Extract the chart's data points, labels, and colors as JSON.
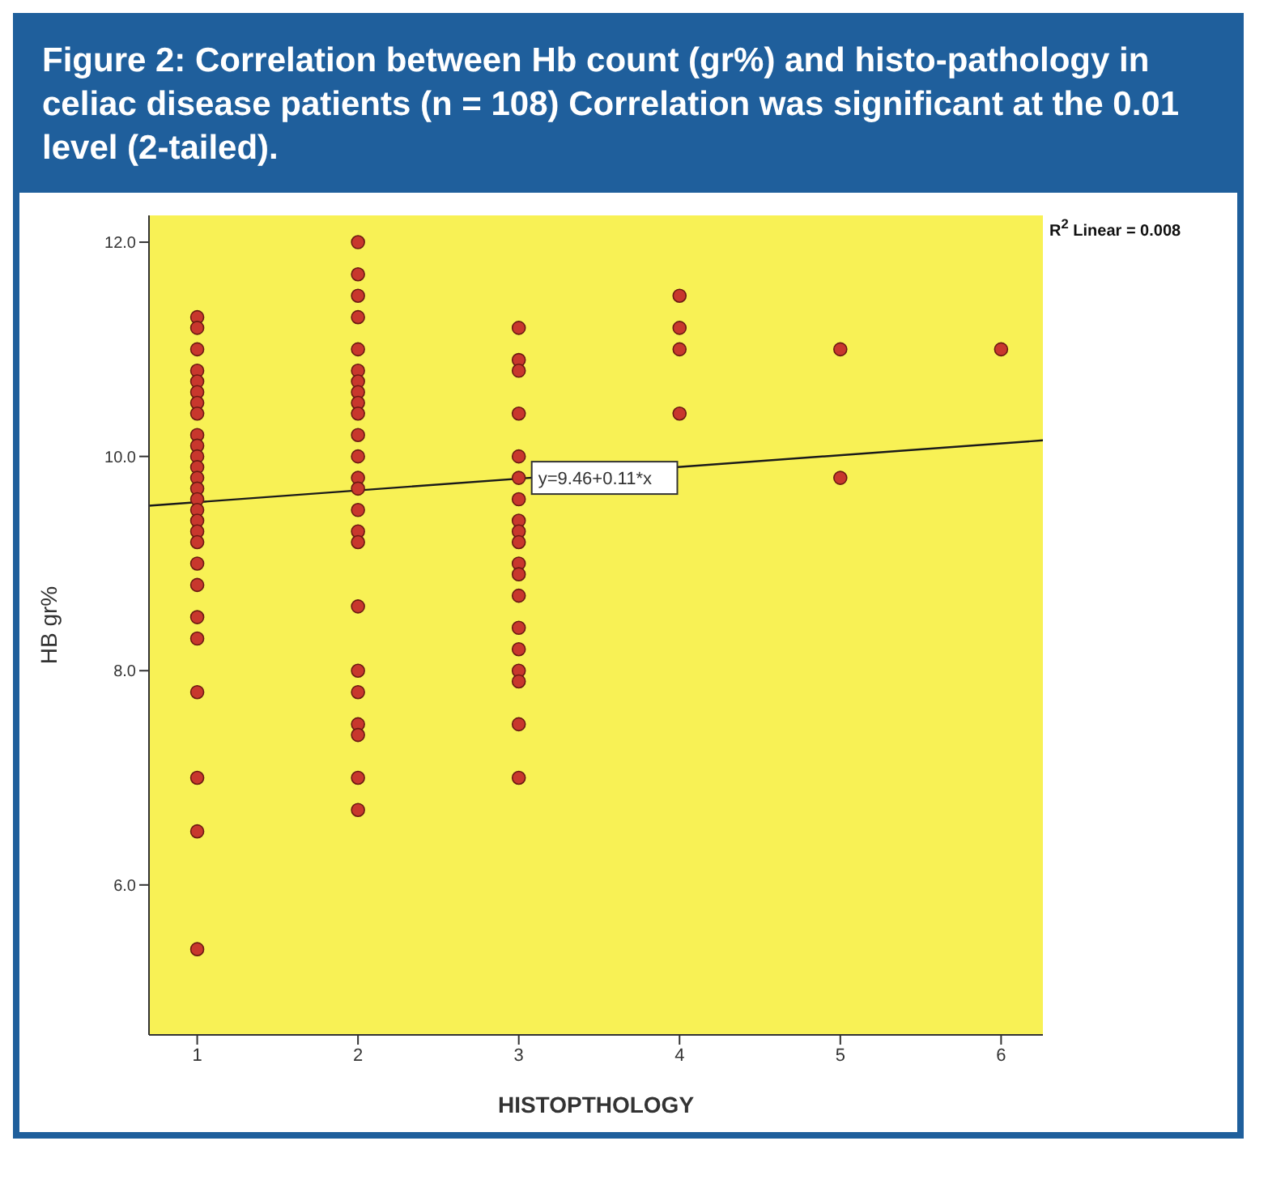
{
  "chart_data": {
    "type": "scatter",
    "title": "Figure 2: Correlation between Hb count (gr%) and histo-pathology in celiac disease patients (n = 108) Correlation was significant at the 0.01 level (2-tailed).",
    "xlabel": "HISTOPTHOLOGY",
    "ylabel": "HB gr%",
    "xlim": [
      0.7,
      6.26
    ],
    "xticks": [
      1,
      2,
      3,
      4,
      5,
      6
    ],
    "ylim": [
      4.6,
      12.25
    ],
    "yticks": [
      {
        "value": 6,
        "label": "6.0"
      },
      {
        "value": 8,
        "label": "8.0"
      },
      {
        "value": 10,
        "label": "10.0"
      },
      {
        "value": 12,
        "label": "12.0"
      }
    ],
    "marker": "circle",
    "grid": false,
    "legend": false,
    "series": [
      {
        "color": "#c8372d",
        "x": [
          1,
          1,
          1,
          1,
          1,
          1,
          1,
          1,
          1,
          1,
          1,
          1,
          1,
          1,
          1,
          1,
          1,
          1,
          1,
          1,
          1,
          1,
          1,
          1,
          1,
          1,
          1
        ],
        "values": [
          11.3,
          11.2,
          11.0,
          10.8,
          10.7,
          10.6,
          10.5,
          10.4,
          10.2,
          10.1,
          10.0,
          9.9,
          9.8,
          9.7,
          9.6,
          9.5,
          9.4,
          9.3,
          9.2,
          9.0,
          8.8,
          8.5,
          8.3,
          7.8,
          7.0,
          6.5,
          5.4
        ]
      },
      {
        "color": "#c8372d",
        "x": [
          2,
          2,
          2,
          2,
          2,
          2,
          2,
          2,
          2,
          2,
          2,
          2,
          2,
          2,
          2,
          2,
          2,
          2,
          2,
          2,
          2,
          2,
          2,
          2
        ],
        "values": [
          12.0,
          11.7,
          11.5,
          11.3,
          11.0,
          10.8,
          10.7,
          10.6,
          10.5,
          10.4,
          10.2,
          10.0,
          9.8,
          9.7,
          9.5,
          9.3,
          9.2,
          8.6,
          8.0,
          7.8,
          7.5,
          7.4,
          7.0,
          6.7
        ]
      },
      {
        "color": "#c8372d",
        "x": [
          3,
          3,
          3,
          3,
          3,
          3,
          3,
          3,
          3,
          3,
          3,
          3,
          3,
          3,
          3,
          3,
          3,
          3,
          3
        ],
        "values": [
          11.2,
          10.9,
          10.8,
          10.4,
          10.0,
          9.8,
          9.6,
          9.4,
          9.3,
          9.2,
          9.0,
          8.9,
          8.7,
          8.4,
          8.2,
          8.0,
          7.9,
          7.5,
          7.0
        ]
      },
      {
        "color": "#c8372d",
        "x": [
          4,
          4,
          4,
          4,
          5,
          5,
          6
        ],
        "values": [
          11.5,
          11.2,
          11.0,
          10.4,
          11.0,
          9.8,
          11.0
        ]
      },
      {
        "type": "line",
        "color": "#1a1a1a",
        "marker": "none",
        "x": [
          0.7,
          6.26
        ],
        "values": [
          9.54,
          10.15
        ]
      }
    ],
    "annotations": [
      {
        "text": "y=9.46+0.11*x",
        "x": 3,
        "y": 9.8
      },
      "R$^{2}$ Linear = 0.008"
    ]
  }
}
